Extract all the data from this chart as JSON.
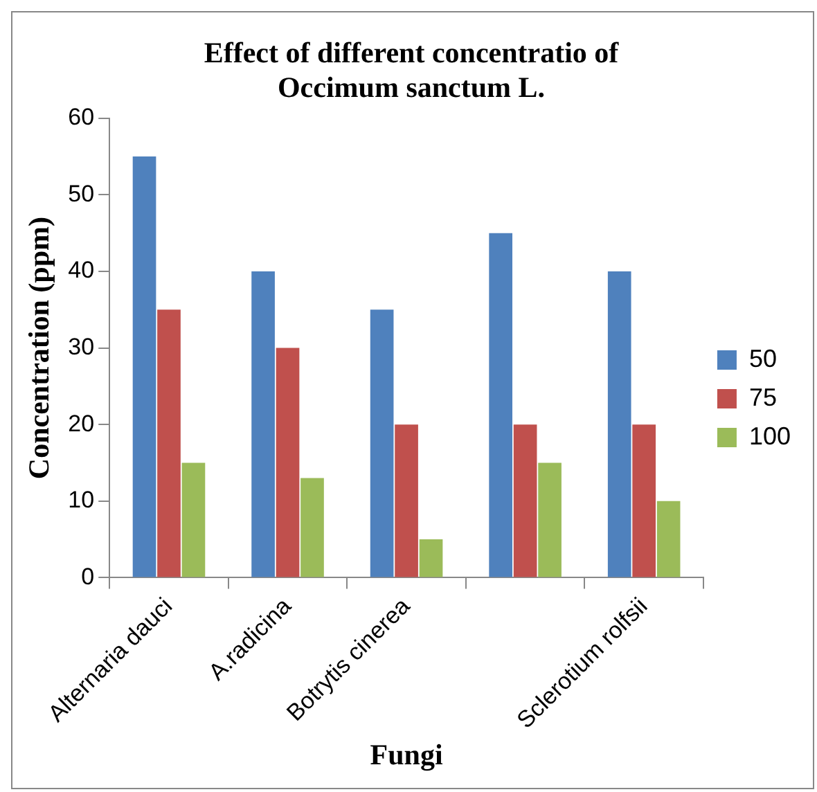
{
  "chart_data": {
    "type": "bar",
    "title": "Effect of different concentratio of Occimum sanctum L.",
    "xlabel": "Fungi",
    "ylabel": "Concentration (ppm)",
    "categories": [
      "Alternaria dauci",
      "A.radicina",
      "Botrytis cinerea",
      null,
      "Sclerotium rolfsii"
    ],
    "series": [
      {
        "name": "50",
        "color": "#4f81bd",
        "values": [
          55,
          40,
          35,
          45,
          40
        ]
      },
      {
        "name": "75",
        "color": "#c0504d",
        "values": [
          35,
          30,
          20,
          20,
          20
        ]
      },
      {
        "name": "100",
        "color": "#9bbb59",
        "values": [
          15,
          13,
          5,
          15,
          10
        ]
      }
    ],
    "ylim": [
      0,
      60
    ],
    "yticks": [
      0,
      10,
      20,
      30,
      40,
      50,
      60
    ],
    "grid": false,
    "legend": "right"
  }
}
